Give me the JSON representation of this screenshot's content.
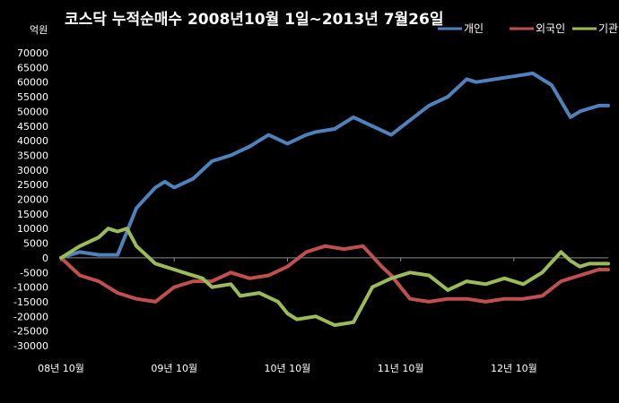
{
  "chart_data": {
    "type": "line",
    "title": "코스닥 누적순매수 2008년10월 1일~2013년 7월26일",
    "ylabel": "억원",
    "xlabel": "",
    "ylim": [
      -30000,
      70000
    ],
    "y_ticks": [
      70000,
      65000,
      60000,
      55000,
      50000,
      45000,
      40000,
      35000,
      30000,
      25000,
      20000,
      15000,
      10000,
      5000,
      0,
      -5000,
      -10000,
      -15000,
      -20000,
      -25000,
      -30000
    ],
    "x_tick_labels": [
      "08년 10월",
      "09년 10월",
      "10년 10월",
      "11년 10월",
      "12년 10월"
    ],
    "x_range_months": [
      0,
      58
    ],
    "grid": false,
    "legend_position": "top-right",
    "series": [
      {
        "name": "개인",
        "color": "#4F81BD",
        "x": [
          0,
          2,
          4,
          6,
          8,
          10,
          11,
          12,
          14,
          16,
          18,
          20,
          22,
          24,
          26,
          27,
          29,
          31,
          33,
          35,
          37,
          39,
          41,
          43,
          44,
          46,
          48,
          50,
          52,
          54,
          55,
          56,
          57,
          58
        ],
        "y": [
          0,
          2000,
          1000,
          1000,
          17000,
          24000,
          26000,
          24000,
          27000,
          33000,
          35000,
          38000,
          42000,
          39000,
          42000,
          43000,
          44000,
          48000,
          45000,
          42000,
          47000,
          52000,
          55000,
          61000,
          60000,
          61000,
          62000,
          63000,
          59000,
          48000,
          50000,
          51000,
          52000,
          52000
        ]
      },
      {
        "name": "외국인",
        "color": "#C0504D",
        "x": [
          0,
          2,
          4,
          6,
          8,
          10,
          12,
          14,
          16,
          18,
          20,
          22,
          24,
          26,
          28,
          30,
          32,
          34,
          35,
          37,
          39,
          41,
          43,
          45,
          47,
          49,
          51,
          53,
          55,
          57,
          58
        ],
        "y": [
          0,
          -6000,
          -8000,
          -12000,
          -14000,
          -15000,
          -10000,
          -8000,
          -8000,
          -5000,
          -7000,
          -6000,
          -3000,
          2000,
          4000,
          3000,
          4000,
          -3000,
          -6000,
          -14000,
          -15000,
          -14000,
          -14000,
          -15000,
          -14000,
          -14000,
          -13000,
          -8000,
          -6000,
          -4000,
          -4000
        ]
      },
      {
        "name": "기관",
        "color": "#9BBB59",
        "x": [
          0,
          2,
          4,
          5,
          6,
          7,
          8,
          10,
          11,
          12,
          13,
          15,
          16,
          18,
          19,
          21,
          23,
          24,
          25,
          27,
          29,
          31,
          33,
          35,
          37,
          39,
          41,
          43,
          45,
          47,
          49,
          51,
          53,
          54,
          55,
          56,
          57,
          58
        ],
        "y": [
          0,
          4000,
          7000,
          10000,
          9000,
          10000,
          4000,
          -2000,
          -3000,
          -4000,
          -5000,
          -7000,
          -10000,
          -9000,
          -13000,
          -12000,
          -15000,
          -19000,
          -21000,
          -20000,
          -23000,
          -22000,
          -10000,
          -7000,
          -5000,
          -6000,
          -11000,
          -8000,
          -9000,
          -7000,
          -9000,
          -5000,
          2000,
          -1000,
          -3000,
          -2000,
          -2000,
          -2000
        ]
      }
    ]
  }
}
